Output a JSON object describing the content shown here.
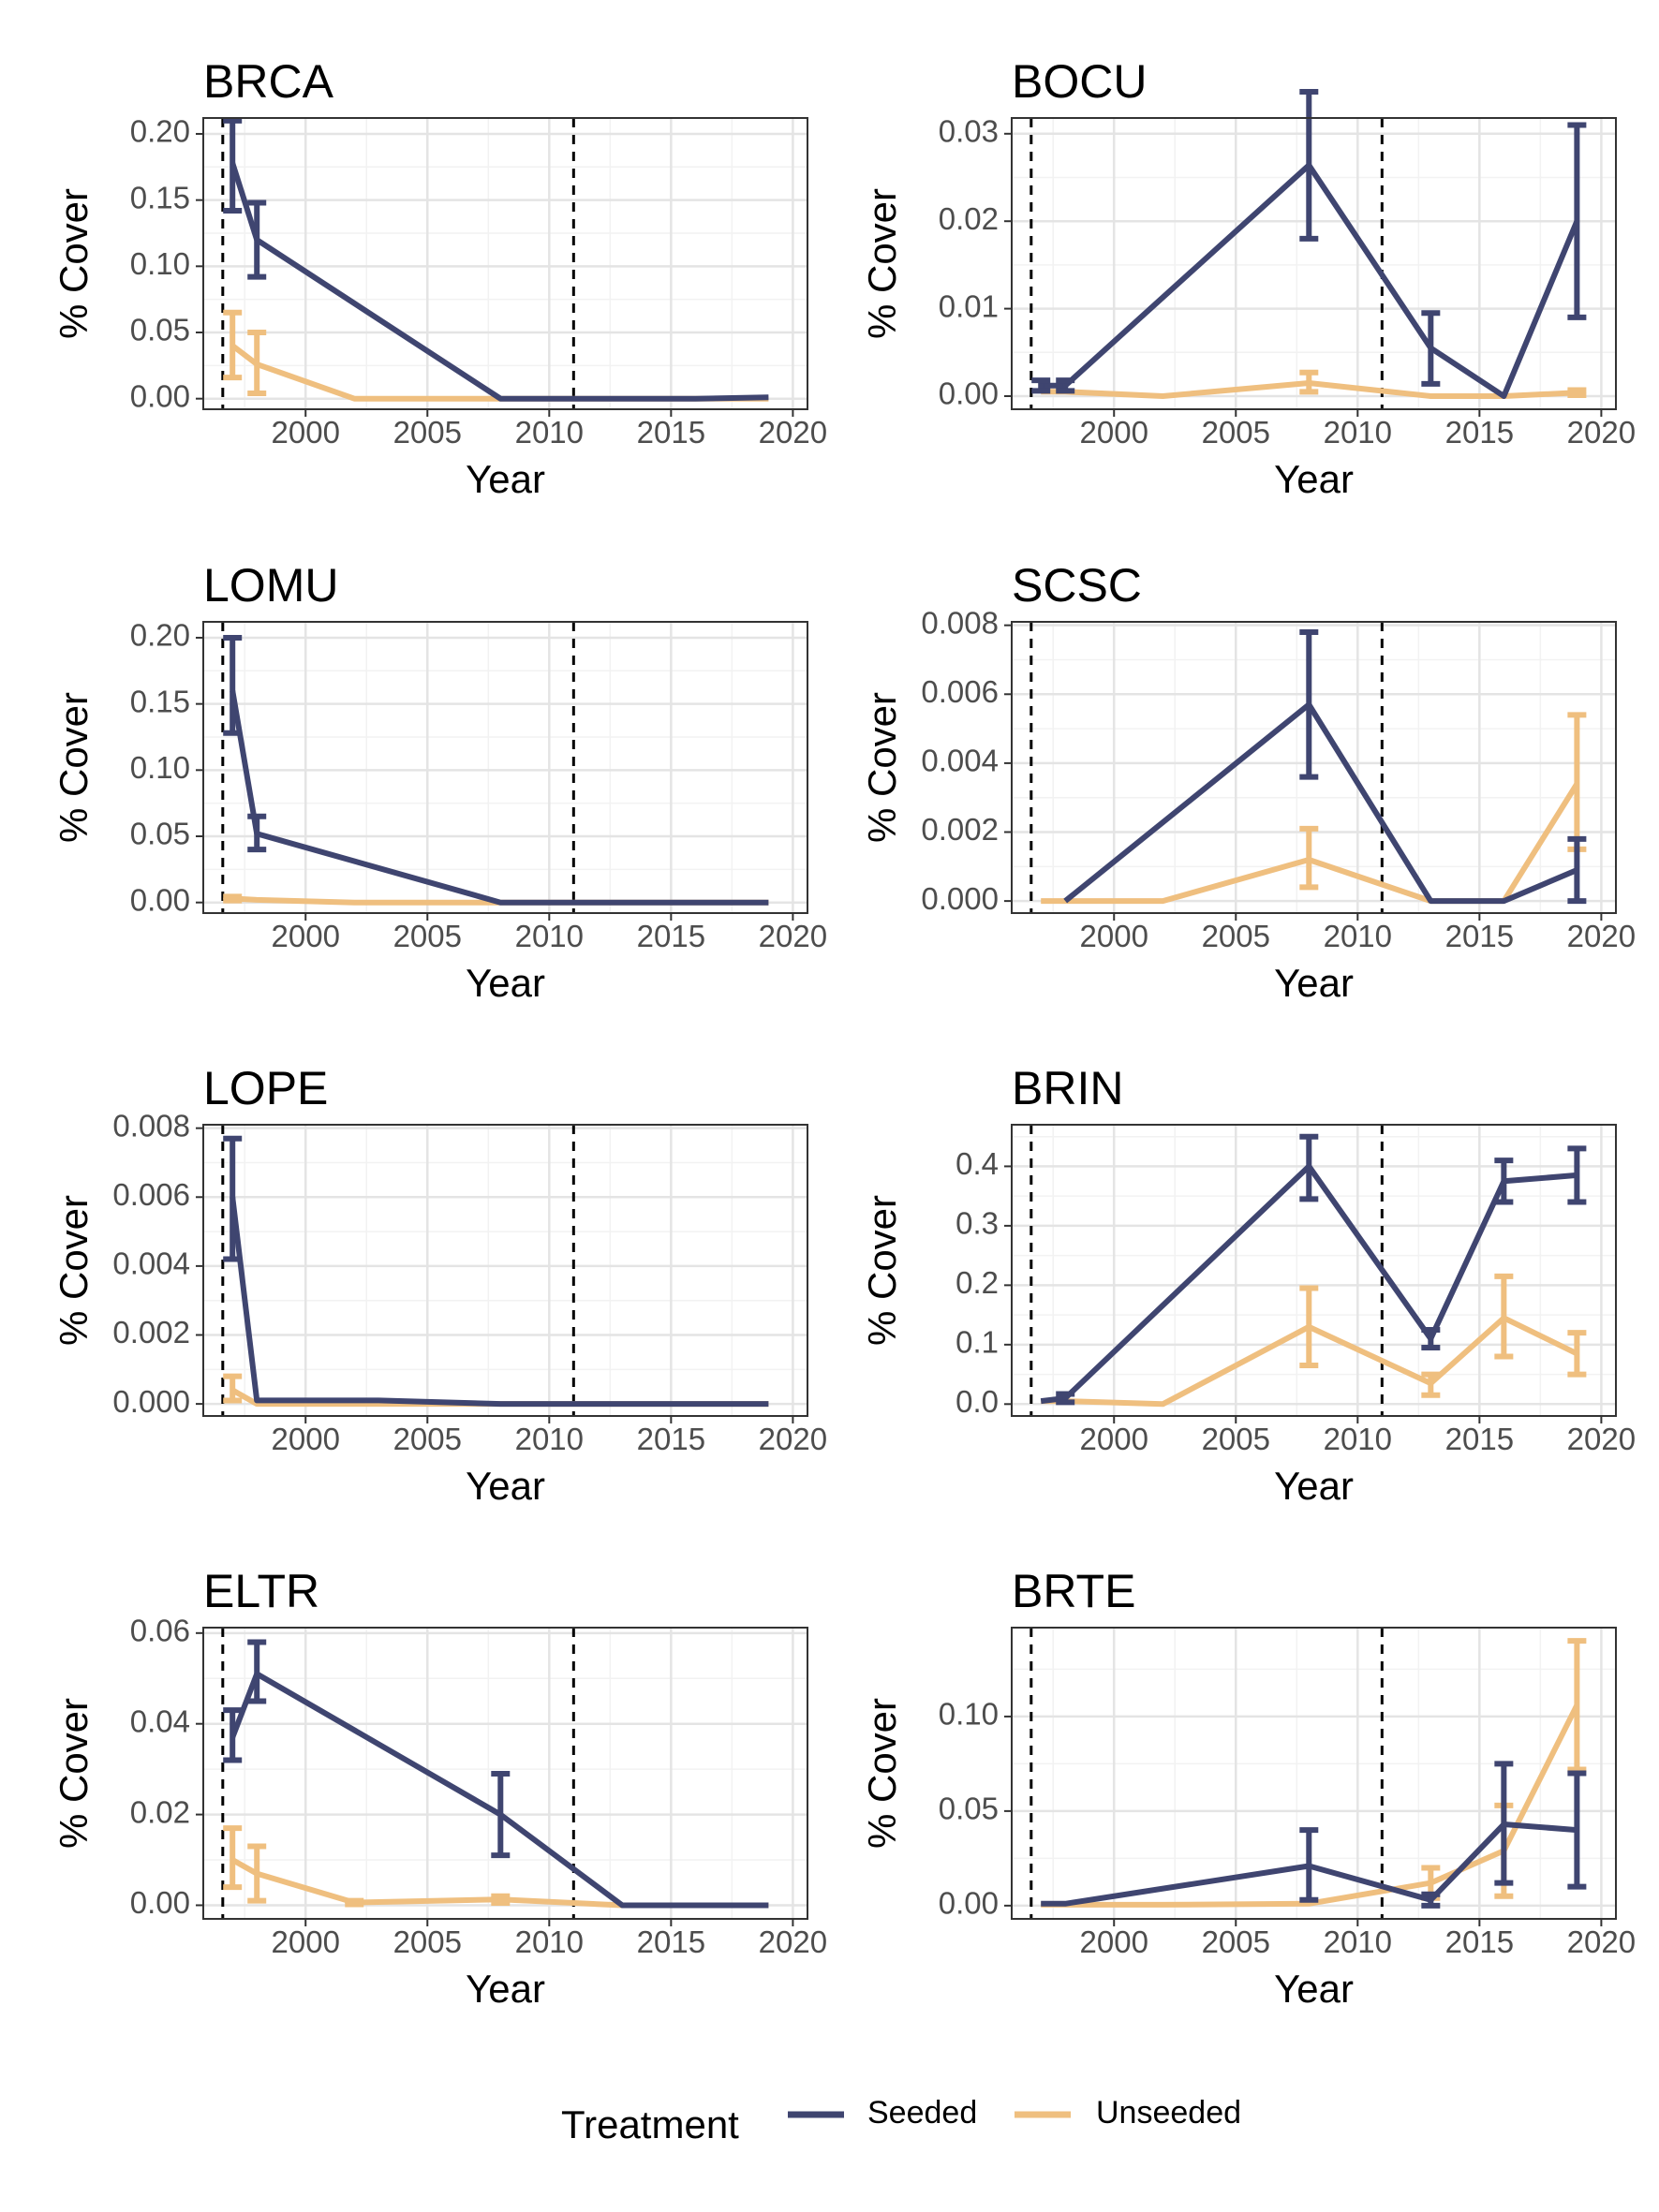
{
  "colors": {
    "seeded": "#3f4570",
    "unseeded": "#efbf7f",
    "grid_major": "#e4e4e4",
    "grid_minor": "#f2f2f2",
    "panel_border": "#333333",
    "reference_line": "#000000"
  },
  "legend": {
    "title": "Treatment",
    "items": [
      {
        "label": "Seeded",
        "color": "#3f4570"
      },
      {
        "label": "Unseeded",
        "color": "#efbf7f"
      }
    ]
  },
  "chart_data": [
    {
      "type": "line",
      "title": "BRCA",
      "xlabel": "Year",
      "ylabel": "% Cover",
      "xlim": [
        1995.8,
        2020.6
      ],
      "ylim": [
        -0.008,
        0.212
      ],
      "xticks": [
        2000,
        2005,
        2010,
        2015,
        2020
      ],
      "xtick_labels": [
        "2000",
        "2005",
        "2010",
        "2015",
        "2020"
      ],
      "yticks": [
        0,
        0.05,
        0.1,
        0.15,
        0.2
      ],
      "ytick_labels": [
        "0.00",
        "0.05",
        "0.10",
        "0.15",
        "0.20"
      ],
      "reference_lines_x": [
        1996.6,
        2011
      ],
      "series": [
        {
          "name": "Seeded",
          "color": "#3f4570",
          "x": [
            1997,
            1998,
            2008,
            2013,
            2016,
            2019
          ],
          "y": [
            0.178,
            0.12,
            0,
            0,
            0,
            0.001
          ],
          "error_bars": [
            {
              "x": 1997,
              "low": 0.142,
              "high": 0.21
            },
            {
              "x": 1998,
              "low": 0.092,
              "high": 0.148
            }
          ]
        },
        {
          "name": "Unseeded",
          "color": "#efbf7f",
          "x": [
            1997,
            1998,
            2002,
            2008,
            2013,
            2016,
            2019
          ],
          "y": [
            0.04,
            0.026,
            0,
            0,
            0,
            0,
            0
          ],
          "error_bars": [
            {
              "x": 1997,
              "low": 0.016,
              "high": 0.065
            },
            {
              "x": 1998,
              "low": 0.004,
              "high": 0.05
            }
          ]
        }
      ]
    },
    {
      "type": "line",
      "title": "BOCU",
      "xlabel": "Year",
      "ylabel": "% Cover",
      "xlim": [
        1995.8,
        2020.6
      ],
      "ylim": [
        -0.0015,
        0.0318
      ],
      "xticks": [
        2000,
        2005,
        2010,
        2015,
        2020
      ],
      "xtick_labels": [
        "2000",
        "2005",
        "2010",
        "2015",
        "2020"
      ],
      "yticks": [
        0,
        0.01,
        0.02,
        0.03
      ],
      "ytick_labels": [
        "0.00",
        "0.01",
        "0.02",
        "0.03"
      ],
      "reference_lines_x": [
        1996.6,
        2011
      ],
      "series": [
        {
          "name": "Seeded",
          "color": "#3f4570",
          "x": [
            1997,
            1998,
            2008,
            2013,
            2016,
            2019
          ],
          "y": [
            0.0012,
            0.0012,
            0.0264,
            0.0055,
            0,
            0.02
          ],
          "error_bars": [
            {
              "x": 1997,
              "low": 0.0006,
              "high": 0.0018
            },
            {
              "x": 1998,
              "low": 0.0006,
              "high": 0.0018
            },
            {
              "x": 2008,
              "low": 0.018,
              "high": 0.0348
            },
            {
              "x": 2013,
              "low": 0.0014,
              "high": 0.0095
            },
            {
              "x": 2019,
              "low": 0.009,
              "high": 0.031
            }
          ]
        },
        {
          "name": "Unseeded",
          "color": "#efbf7f",
          "x": [
            1997,
            1998,
            2002,
            2008,
            2013,
            2016,
            2019
          ],
          "y": [
            0.0005,
            0.0005,
            0,
            0.0015,
            0,
            0,
            0.0004
          ],
          "error_bars": [
            {
              "x": 2008,
              "low": 0.0005,
              "high": 0.0027
            },
            {
              "x": 2019,
              "low": 0.0001,
              "high": 0.0007
            }
          ]
        }
      ]
    },
    {
      "type": "line",
      "title": "LOMU",
      "xlabel": "Year",
      "ylabel": "% Cover",
      "xlim": [
        1995.8,
        2020.6
      ],
      "ylim": [
        -0.008,
        0.212
      ],
      "xticks": [
        2000,
        2005,
        2010,
        2015,
        2020
      ],
      "xtick_labels": [
        "2000",
        "2005",
        "2010",
        "2015",
        "2020"
      ],
      "yticks": [
        0,
        0.05,
        0.1,
        0.15,
        0.2
      ],
      "ytick_labels": [
        "0.00",
        "0.05",
        "0.10",
        "0.15",
        "0.20"
      ],
      "reference_lines_x": [
        1996.6,
        2011
      ],
      "series": [
        {
          "name": "Seeded",
          "color": "#3f4570",
          "x": [
            1997,
            1998,
            2008,
            2013,
            2016,
            2019
          ],
          "y": [
            0.16,
            0.052,
            0,
            0,
            0,
            0
          ],
          "error_bars": [
            {
              "x": 1997,
              "low": 0.128,
              "high": 0.2
            },
            {
              "x": 1998,
              "low": 0.04,
              "high": 0.065
            }
          ]
        },
        {
          "name": "Unseeded",
          "color": "#efbf7f",
          "x": [
            1997,
            1998,
            2002,
            2008,
            2013,
            2016,
            2019
          ],
          "y": [
            0.003,
            0.002,
            0,
            0,
            0,
            0,
            0
          ],
          "error_bars": [
            {
              "x": 1997,
              "low": 0.0015,
              "high": 0.0045
            }
          ]
        }
      ]
    },
    {
      "type": "line",
      "title": "SCSC",
      "xlabel": "Year",
      "ylabel": "% Cover",
      "xlim": [
        1995.8,
        2020.6
      ],
      "ylim": [
        -0.00035,
        0.0081
      ],
      "xticks": [
        2000,
        2005,
        2010,
        2015,
        2020
      ],
      "xtick_labels": [
        "2000",
        "2005",
        "2010",
        "2015",
        "2020"
      ],
      "yticks": [
        0,
        0.002,
        0.004,
        0.006,
        0.008
      ],
      "ytick_labels": [
        "0.000",
        "0.002",
        "0.004",
        "0.006",
        "0.008"
      ],
      "reference_lines_x": [
        1996.6,
        2011
      ],
      "series": [
        {
          "name": "Seeded",
          "color": "#3f4570",
          "x": [
            1998,
            2008,
            2013,
            2016,
            2019
          ],
          "y": [
            0,
            0.0057,
            0,
            0,
            0.0009
          ],
          "error_bars": [
            {
              "x": 2008,
              "low": 0.0036,
              "high": 0.0078
            },
            {
              "x": 2019,
              "low": 0,
              "high": 0.0018
            }
          ]
        },
        {
          "name": "Unseeded",
          "color": "#efbf7f",
          "x": [
            1997,
            1998,
            2002,
            2008,
            2013,
            2016,
            2019
          ],
          "y": [
            0,
            0,
            0,
            0.0012,
            0,
            0,
            0.0034
          ],
          "error_bars": [
            {
              "x": 2008,
              "low": 0.0004,
              "high": 0.0021
            },
            {
              "x": 2019,
              "low": 0.0015,
              "high": 0.0054
            }
          ]
        }
      ]
    },
    {
      "type": "line",
      "title": "LOPE",
      "xlabel": "Year",
      "ylabel": "% Cover",
      "xlim": [
        1995.8,
        2020.6
      ],
      "ylim": [
        -0.00035,
        0.0081
      ],
      "xticks": [
        2000,
        2005,
        2010,
        2015,
        2020
      ],
      "xtick_labels": [
        "2000",
        "2005",
        "2010",
        "2015",
        "2020"
      ],
      "yticks": [
        0,
        0.002,
        0.004,
        0.006,
        0.008
      ],
      "ytick_labels": [
        "0.000",
        "0.002",
        "0.004",
        "0.006",
        "0.008"
      ],
      "reference_lines_x": [
        1996.6,
        2011
      ],
      "series": [
        {
          "name": "Seeded",
          "color": "#3f4570",
          "x": [
            1997,
            1998,
            2003,
            2008,
            2013,
            2016,
            2019
          ],
          "y": [
            0.006,
            0.0001,
            0.0001,
            0,
            0,
            0,
            0
          ],
          "error_bars": [
            {
              "x": 1997,
              "low": 0.0042,
              "high": 0.0077
            }
          ]
        },
        {
          "name": "Unseeded",
          "color": "#efbf7f",
          "x": [
            1997,
            1998,
            2002,
            2008,
            2013,
            2016,
            2019
          ],
          "y": [
            0.0004,
            0,
            0,
            0,
            0,
            0,
            0
          ],
          "error_bars": [
            {
              "x": 1997,
              "low": 0.0001,
              "high": 0.0008
            }
          ]
        }
      ]
    },
    {
      "type": "line",
      "title": "BRIN",
      "xlabel": "Year",
      "ylabel": "% Cover",
      "xlim": [
        1995.8,
        2020.6
      ],
      "ylim": [
        -0.02,
        0.47
      ],
      "xticks": [
        2000,
        2005,
        2010,
        2015,
        2020
      ],
      "xtick_labels": [
        "2000",
        "2005",
        "2010",
        "2015",
        "2020"
      ],
      "yticks": [
        0,
        0.1,
        0.2,
        0.3,
        0.4
      ],
      "ytick_labels": [
        "0.0",
        "0.1",
        "0.2",
        "0.3",
        "0.4"
      ],
      "reference_lines_x": [
        1996.6,
        2011
      ],
      "series": [
        {
          "name": "Seeded",
          "color": "#3f4570",
          "x": [
            1997,
            1998,
            2008,
            2013,
            2016,
            2019
          ],
          "y": [
            0.005,
            0.01,
            0.4,
            0.11,
            0.375,
            0.385
          ],
          "error_bars": [
            {
              "x": 1998,
              "low": 0.003,
              "high": 0.017
            },
            {
              "x": 2008,
              "low": 0.345,
              "high": 0.45
            },
            {
              "x": 2013,
              "low": 0.095,
              "high": 0.125
            },
            {
              "x": 2016,
              "low": 0.34,
              "high": 0.41
            },
            {
              "x": 2019,
              "low": 0.34,
              "high": 0.43
            }
          ]
        },
        {
          "name": "Unseeded",
          "color": "#efbf7f",
          "x": [
            1997,
            1998,
            2002,
            2008,
            2013,
            2016,
            2019
          ],
          "y": [
            0.005,
            0.005,
            0,
            0.13,
            0.035,
            0.145,
            0.085
          ],
          "error_bars": [
            {
              "x": 2008,
              "low": 0.065,
              "high": 0.195
            },
            {
              "x": 2013,
              "low": 0.015,
              "high": 0.05
            },
            {
              "x": 2016,
              "low": 0.08,
              "high": 0.215
            },
            {
              "x": 2019,
              "low": 0.05,
              "high": 0.12
            }
          ]
        }
      ]
    },
    {
      "type": "line",
      "title": "ELTR",
      "xlabel": "Year",
      "ylabel": "% Cover",
      "xlim": [
        1995.8,
        2020.6
      ],
      "ylim": [
        -0.003,
        0.0612
      ],
      "xticks": [
        2000,
        2005,
        2010,
        2015,
        2020
      ],
      "xtick_labels": [
        "2000",
        "2005",
        "2010",
        "2015",
        "2020"
      ],
      "yticks": [
        0,
        0.02,
        0.04,
        0.06
      ],
      "ytick_labels": [
        "0.00",
        "0.02",
        "0.04",
        "0.06"
      ],
      "reference_lines_x": [
        1996.6,
        2011
      ],
      "series": [
        {
          "name": "Seeded",
          "color": "#3f4570",
          "x": [
            1997,
            1998,
            2008,
            2013,
            2016,
            2019
          ],
          "y": [
            0.037,
            0.051,
            0.02,
            0,
            0,
            0
          ],
          "error_bars": [
            {
              "x": 1997,
              "low": 0.032,
              "high": 0.043
            },
            {
              "x": 1998,
              "low": 0.045,
              "high": 0.058
            },
            {
              "x": 2008,
              "low": 0.011,
              "high": 0.029
            }
          ]
        },
        {
          "name": "Unseeded",
          "color": "#efbf7f",
          "x": [
            1997,
            1998,
            2002,
            2008,
            2013,
            2016,
            2019
          ],
          "y": [
            0.01,
            0.007,
            0.0006,
            0.0013,
            0,
            0,
            0
          ],
          "error_bars": [
            {
              "x": 1997,
              "low": 0.004,
              "high": 0.017
            },
            {
              "x": 1998,
              "low": 0.001,
              "high": 0.013
            },
            {
              "x": 2002,
              "low": 0.0002,
              "high": 0.001
            },
            {
              "x": 2008,
              "low": 0.0005,
              "high": 0.002
            }
          ]
        }
      ]
    },
    {
      "type": "line",
      "title": "BRTE",
      "xlabel": "Year",
      "ylabel": "% Cover",
      "xlim": [
        1995.8,
        2020.6
      ],
      "ylim": [
        -0.007,
        0.147
      ],
      "xticks": [
        2000,
        2005,
        2010,
        2015,
        2020
      ],
      "xtick_labels": [
        "2000",
        "2005",
        "2010",
        "2015",
        "2020"
      ],
      "yticks": [
        0,
        0.05,
        0.1
      ],
      "ytick_labels": [
        "0.00",
        "0.05",
        "0.10"
      ],
      "reference_lines_x": [
        1996.6,
        2011
      ],
      "series": [
        {
          "name": "Seeded",
          "color": "#3f4570",
          "x": [
            1997,
            1998,
            2008,
            2013,
            2016,
            2019
          ],
          "y": [
            0.001,
            0.001,
            0.021,
            0.003,
            0.043,
            0.04
          ],
          "error_bars": [
            {
              "x": 2008,
              "low": 0.003,
              "high": 0.04
            },
            {
              "x": 2013,
              "low": 0,
              "high": 0.006
            },
            {
              "x": 2016,
              "low": 0.012,
              "high": 0.075
            },
            {
              "x": 2019,
              "low": 0.01,
              "high": 0.07
            }
          ]
        },
        {
          "name": "Unseeded",
          "color": "#efbf7f",
          "x": [
            1997,
            1998,
            2002,
            2008,
            2013,
            2016,
            2019
          ],
          "y": [
            0.0005,
            0.0005,
            0.0005,
            0.001,
            0.012,
            0.029,
            0.106
          ],
          "error_bars": [
            {
              "x": 2013,
              "low": 0.004,
              "high": 0.02
            },
            {
              "x": 2016,
              "low": 0.005,
              "high": 0.053
            },
            {
              "x": 2019,
              "low": 0.072,
              "high": 0.14
            }
          ]
        }
      ]
    }
  ]
}
